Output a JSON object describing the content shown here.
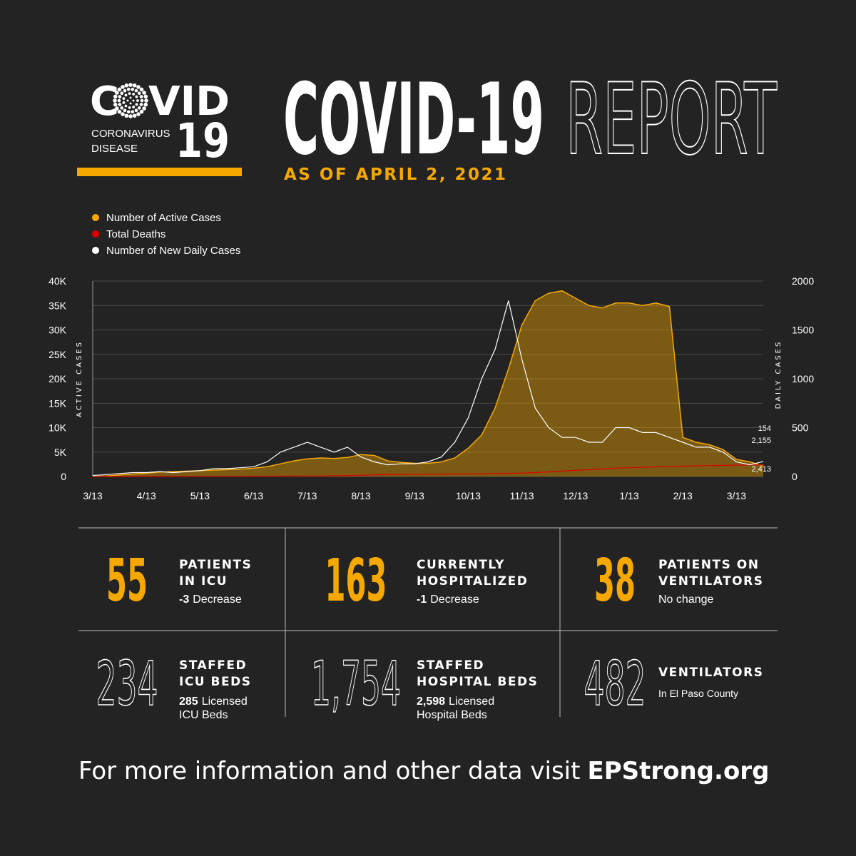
{
  "header": {
    "logo_left": "C",
    "logo_right": "VID",
    "logo_line1": "CORONAVIRUS",
    "logo_line2": "DISEASE",
    "logo_number": "19",
    "title": "COVID-19",
    "title_outline": "REPORT",
    "subtitle": "AS OF APRIL 2, 2021"
  },
  "chart_data": {
    "type": "line",
    "ylabel": "ACTIVE CASES",
    "y2label": "DAILY CASES",
    "categories": [
      "3/13",
      null,
      null,
      null,
      "4/13",
      null,
      null,
      null,
      "5/13",
      null,
      null,
      null,
      "6/13",
      null,
      null,
      null,
      "7/13",
      null,
      null,
      null,
      "8/13",
      null,
      null,
      null,
      "9/13",
      null,
      null,
      null,
      "10/13",
      null,
      null,
      null,
      "11/13",
      null,
      null,
      null,
      "12/13",
      null,
      null,
      null,
      "1/13",
      null,
      null,
      null,
      "2/13",
      null,
      null,
      null,
      "3/13",
      null,
      null
    ],
    "series": [
      {
        "name": "Number of Active Cases",
        "color": "#f5a800",
        "area": true,
        "values": [
          0,
          100,
          300,
          500,
          700,
          900,
          1000,
          1100,
          1200,
          1300,
          1400,
          1500,
          1700,
          2000,
          2600,
          3200,
          3600,
          3800,
          3700,
          3900,
          4500,
          4300,
          3200,
          2900,
          2700,
          2700,
          3000,
          3800,
          5800,
          8500,
          14000,
          22000,
          31000,
          36000,
          37500,
          38000,
          36500,
          35000,
          34500,
          35500,
          35500,
          35000,
          35500,
          34800,
          8000,
          7000,
          6500,
          5500,
          3500,
          3000,
          2155
        ],
        "value_labels": [
          null,
          null,
          null,
          null,
          null,
          null,
          null,
          null,
          null,
          null,
          null,
          null,
          null,
          null,
          null,
          null,
          null,
          null,
          null,
          null,
          null,
          null,
          null,
          null,
          null,
          null,
          null,
          null,
          null,
          null,
          null,
          null,
          null,
          null,
          null,
          null,
          null,
          null,
          null,
          null,
          null,
          null,
          null,
          null,
          null,
          null,
          null,
          null,
          null,
          null,
          "2,155"
        ]
      },
      {
        "name": "Total Deaths",
        "color": "#e00000",
        "values": [
          0,
          0,
          0,
          5,
          10,
          15,
          20,
          25,
          30,
          35,
          40,
          50,
          60,
          70,
          80,
          90,
          100,
          120,
          150,
          200,
          260,
          320,
          380,
          420,
          450,
          470,
          490,
          510,
          530,
          560,
          600,
          650,
          700,
          800,
          950,
          1100,
          1250,
          1400,
          1550,
          1700,
          1800,
          1900,
          1980,
          2050,
          2120,
          2180,
          2230,
          2280,
          2320,
          2370,
          2413
        ],
        "value_labels": [
          null,
          null,
          null,
          null,
          null,
          null,
          null,
          null,
          null,
          null,
          null,
          null,
          null,
          null,
          null,
          null,
          null,
          null,
          null,
          null,
          null,
          null,
          null,
          null,
          null,
          null,
          null,
          null,
          null,
          null,
          null,
          null,
          null,
          null,
          null,
          null,
          null,
          null,
          null,
          null,
          null,
          null,
          null,
          null,
          null,
          null,
          null,
          null,
          null,
          null,
          "2,413"
        ]
      },
      {
        "name": "Number of New Daily Cases",
        "color": "#ffffff",
        "axis": "y2",
        "values": [
          10,
          20,
          30,
          40,
          40,
          50,
          40,
          50,
          60,
          80,
          80,
          90,
          100,
          150,
          250,
          300,
          350,
          300,
          250,
          300,
          200,
          150,
          120,
          130,
          130,
          150,
          200,
          350,
          600,
          1000,
          1300,
          1800,
          1200,
          700,
          500,
          400,
          400,
          350,
          350,
          500,
          500,
          450,
          450,
          400,
          350,
          300,
          300,
          250,
          150,
          120,
          154
        ]
      }
    ],
    "ylim": [
      0,
      40000
    ],
    "yticks": [
      0,
      {
        "value": 5000,
        "label": "5K"
      },
      {
        "value": 10000,
        "label": "10K"
      },
      {
        "value": 15000,
        "label": "15K"
      },
      {
        "value": 20000,
        "label": "20K"
      },
      {
        "value": 25000,
        "label": "25K"
      },
      {
        "value": 30000,
        "label": "30K"
      },
      {
        "value": 35000,
        "label": "35K"
      },
      {
        "value": 40000,
        "label": "40K"
      }
    ],
    "y2lim": [
      0,
      2000
    ],
    "y2ticks": [
      0,
      500,
      1000,
      1500,
      2000
    ],
    "grid": true,
    "legend": "top-left"
  },
  "stats": [
    {
      "value": "55",
      "label": [
        "PATIENTS",
        "IN ICU"
      ],
      "note": [
        {
          "bold": "-3",
          "text": "Decrease"
        }
      ]
    },
    {
      "value": "163",
      "label": [
        "CURRENTLY",
        "HOSPITALIZED"
      ],
      "note": [
        {
          "bold": "-1",
          "text": "Decrease"
        }
      ]
    },
    {
      "value": "38",
      "label": [
        "PATIENTS ON",
        "VENTILATORS"
      ],
      "note": [
        {
          "text": "No change"
        }
      ]
    },
    {
      "value": "234",
      "label": [
        "STAFFED",
        "ICU BEDS"
      ],
      "note": [
        {
          "bold": "285",
          "text": "Licensed"
        },
        {
          "text": "ICU Beds"
        }
      ]
    },
    {
      "value": "1,754",
      "label": [
        "STAFFED",
        "HOSPITAL BEDS"
      ],
      "note": [
        {
          "bold": "2,598",
          "text": "Licensed"
        },
        {
          "text": "Hospital Beds"
        }
      ]
    },
    {
      "value": "482",
      "label": [
        "VENTILATORS"
      ],
      "note": [
        {
          "text": "In El Paso County"
        }
      ]
    }
  ],
  "footer": {
    "text": "For more information and other data visit",
    "link": "EPStrong.org"
  }
}
